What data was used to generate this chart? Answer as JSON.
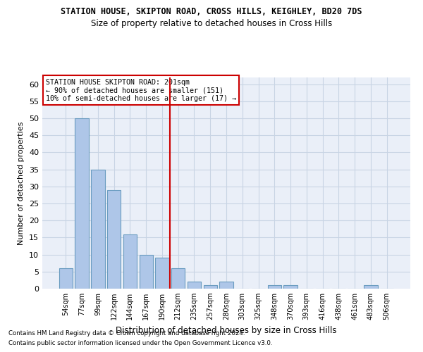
{
  "title": "STATION HOUSE, SKIPTON ROAD, CROSS HILLS, KEIGHLEY, BD20 7DS",
  "subtitle": "Size of property relative to detached houses in Cross Hills",
  "xlabel": "Distribution of detached houses by size in Cross Hills",
  "ylabel": "Number of detached properties",
  "categories": [
    "54sqm",
    "77sqm",
    "99sqm",
    "122sqm",
    "144sqm",
    "167sqm",
    "190sqm",
    "212sqm",
    "235sqm",
    "257sqm",
    "280sqm",
    "303sqm",
    "325sqm",
    "348sqm",
    "370sqm",
    "393sqm",
    "416sqm",
    "438sqm",
    "461sqm",
    "483sqm",
    "506sqm"
  ],
  "values": [
    6,
    50,
    35,
    29,
    16,
    10,
    9,
    6,
    2,
    1,
    2,
    0,
    0,
    1,
    1,
    0,
    0,
    0,
    0,
    1,
    0
  ],
  "bar_color": "#aec6e8",
  "bar_edge_color": "#6a9cc0",
  "grid_color": "#c8d4e4",
  "background_color": "#eaeff8",
  "vline_color": "#cc0000",
  "vline_pos": 6.5,
  "annotation_text": "STATION HOUSE SKIPTON ROAD: 201sqm\n← 90% of detached houses are smaller (151)\n10% of semi-detached houses are larger (17) →",
  "annotation_box_color": "#ffffff",
  "annotation_box_edge": "#cc0000",
  "ylim": [
    0,
    62
  ],
  "yticks": [
    0,
    5,
    10,
    15,
    20,
    25,
    30,
    35,
    40,
    45,
    50,
    55,
    60
  ],
  "footnote1": "Contains HM Land Registry data © Crown copyright and database right 2024.",
  "footnote2": "Contains public sector information licensed under the Open Government Licence v3.0."
}
